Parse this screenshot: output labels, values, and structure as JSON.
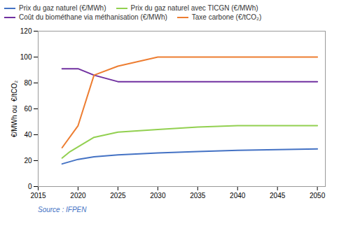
{
  "chart_data": {
    "type": "line",
    "ylabel": "€/MWh ou  €/tCO₂",
    "source": "Source : IFPEN",
    "xlim": [
      2015,
      2051
    ],
    "xticks": [
      2015,
      2020,
      2025,
      2030,
      2035,
      2040,
      2045,
      2050
    ],
    "ylim": [
      0,
      120
    ],
    "yticks": [
      0,
      20,
      40,
      60,
      80,
      100,
      120
    ],
    "grid": false,
    "legend": "top",
    "series": [
      {
        "name": "Prix du gaz naturel (€/MWh)",
        "color": "#4472C4",
        "x": [
          2018,
          2020,
          2022,
          2025,
          2030,
          2035,
          2040,
          2045,
          2050
        ],
        "values": [
          17.5,
          21,
          23,
          24.5,
          26,
          27,
          28,
          28.5,
          29
        ]
      },
      {
        "name": "Prix du gaz naturel avec TICGN (€/MWh)",
        "color": "#92D050",
        "x": [
          2018,
          2019,
          2022,
          2025,
          2030,
          2035,
          2040,
          2045,
          2050
        ],
        "values": [
          22,
          27,
          38,
          42,
          44,
          46,
          47,
          47,
          47
        ]
      },
      {
        "name": "Coût du biométhane via méthanisation (€/MWh)",
        "color": "#7030A0",
        "x": [
          2018,
          2020,
          2022,
          2025,
          2030,
          2035,
          2040,
          2045,
          2050
        ],
        "values": [
          91,
          91,
          86,
          81,
          81,
          81,
          81,
          81,
          81
        ]
      },
      {
        "name": "Taxe carbone (€/tCO₂)",
        "color": "#ED7D31",
        "x": [
          2018,
          2020,
          2022,
          2025,
          2030,
          2035,
          2040,
          2045,
          2050
        ],
        "values": [
          30,
          47,
          86,
          93,
          100,
          100,
          100,
          100,
          100
        ]
      }
    ]
  }
}
